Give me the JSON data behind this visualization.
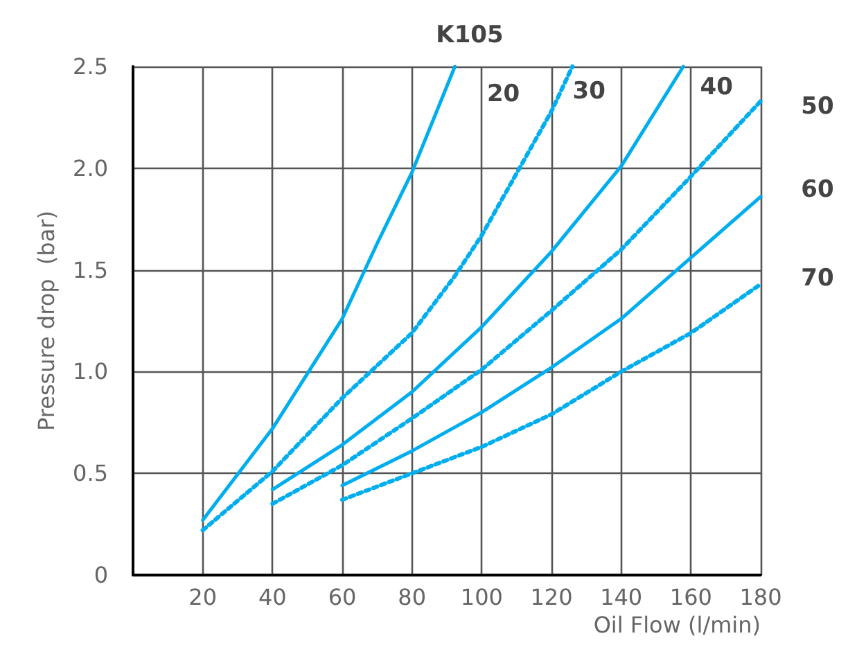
{
  "chart_data": {
    "type": "line",
    "title": "K105",
    "xlabel": "Oil Flow (l/min)",
    "ylabel": "Pressure drop  (bar)",
    "xlim": [
      0,
      180
    ],
    "xticks": [
      20,
      40,
      60,
      80,
      100,
      120,
      140,
      160,
      180
    ],
    "ylim": [
      0,
      2.5
    ],
    "yticks": [
      0,
      0.5,
      {
        "value": 1,
        "label": "1.0"
      },
      1.5,
      {
        "value": 2,
        "label": "2.0"
      },
      2.5
    ],
    "grid": true,
    "legend": false,
    "marker": "none",
    "series": [
      {
        "name": "20",
        "color": "#00aeef",
        "line_style": "solid",
        "x": [
          20,
          40,
          60,
          70,
          80,
          92.3
        ],
        "values": [
          0.27,
          0.72,
          1.26,
          1.63,
          1.98,
          2.5
        ]
      },
      {
        "name": "30",
        "color": "#00aeef",
        "line_style": "dotted",
        "x": [
          20,
          40,
          60,
          80,
          92.3,
          100,
          120,
          126
        ],
        "values": [
          0.22,
          0.51,
          0.87,
          1.19,
          1.47,
          1.67,
          2.28,
          2.5
        ]
      },
      {
        "name": "40",
        "color": "#00aeef",
        "line_style": "solid",
        "x": [
          40,
          60,
          80,
          100,
          120,
          140,
          157.8
        ],
        "values": [
          0.42,
          0.64,
          0.9,
          1.22,
          1.59,
          2.01,
          2.5
        ]
      },
      {
        "name": "50",
        "color": "#00aeef",
        "line_style": "dotted",
        "x": [
          40,
          60,
          80,
          100,
          120,
          140,
          160,
          180
        ],
        "values": [
          0.35,
          0.54,
          0.77,
          1.01,
          1.3,
          1.6,
          1.96,
          2.33
        ]
      },
      {
        "name": "60",
        "color": "#00aeef",
        "line_style": "solid",
        "x": [
          60,
          80,
          100,
          120,
          140,
          160,
          180
        ],
        "values": [
          0.44,
          0.61,
          0.8,
          1.02,
          1.26,
          1.56,
          1.86
        ]
      },
      {
        "name": "70",
        "color": "#00aeef",
        "line_style": "dotted",
        "x": [
          60,
          80,
          100,
          120,
          140,
          160,
          180
        ],
        "values": [
          0.37,
          0.5,
          0.63,
          0.79,
          1.0,
          1.19,
          1.43
        ]
      }
    ]
  }
}
